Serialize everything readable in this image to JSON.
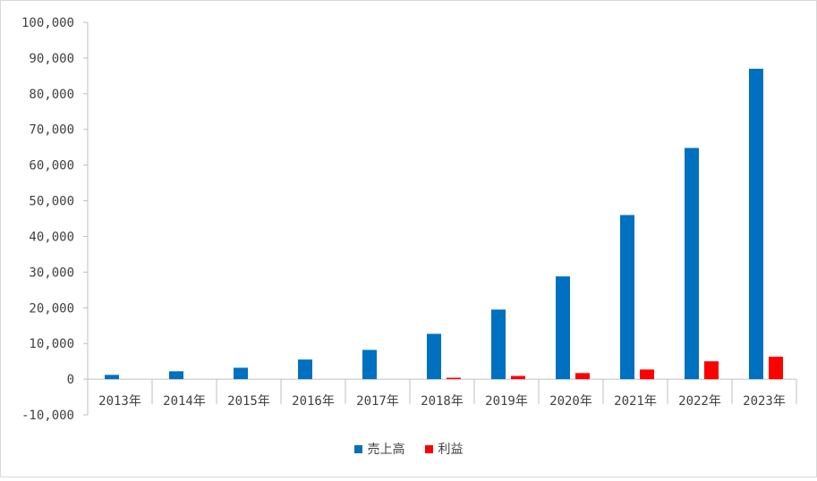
{
  "chart_data": {
    "type": "bar",
    "title": "",
    "xlabel": "",
    "ylabel": "",
    "categories": [
      "2013年",
      "2014年",
      "2015年",
      "2016年",
      "2017年",
      "2018年",
      "2019年",
      "2020年",
      "2021年",
      "2022年",
      "2023年"
    ],
    "series": [
      {
        "name": "売上高",
        "color": "#0070c0",
        "values": [
          1200,
          2200,
          3200,
          5500,
          8200,
          12700,
          19500,
          28800,
          46000,
          64800,
          87000
        ]
      },
      {
        "name": "利益",
        "color": "#ff0000",
        "values": [
          0,
          0,
          0,
          0,
          0,
          400,
          900,
          1700,
          2700,
          5000,
          6300
        ]
      }
    ],
    "ylim": [
      -10000,
      100000
    ],
    "yticks": [
      "-10,000",
      "0",
      "10,000",
      "20,000",
      "30,000",
      "40,000",
      "50,000",
      "60,000",
      "70,000",
      "80,000",
      "90,000",
      "100,000"
    ],
    "ytick_values": [
      -10000,
      0,
      10000,
      20000,
      30000,
      40000,
      50000,
      60000,
      70000,
      80000,
      90000,
      100000
    ],
    "grid": false,
    "legend_position": "bottom"
  }
}
